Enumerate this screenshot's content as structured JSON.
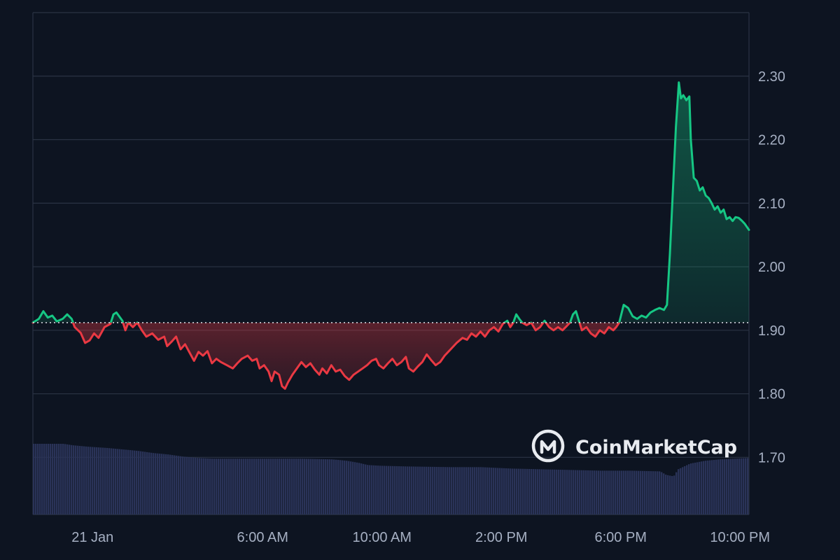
{
  "chart_data": {
    "type": "area",
    "brand": "CoinMarketCap",
    "logo_icon": "coinmarketcap-logo",
    "colors": {
      "background": "#0d1421",
      "grid": "#2b3344",
      "up": "#16c784",
      "down": "#ea3943",
      "volume": "#2a3358",
      "text": "#a6b0c3"
    },
    "baseline": 1.912,
    "ylim": [
      1.61,
      2.4
    ],
    "y_ticks": [
      {
        "value": 2.3,
        "label": "2.30"
      },
      {
        "value": 2.2,
        "label": "2.20"
      },
      {
        "value": 2.1,
        "label": "2.10"
      },
      {
        "value": 2.0,
        "label": "2.00"
      },
      {
        "value": 1.9,
        "label": "1.90"
      },
      {
        "value": 1.8,
        "label": "1.80"
      },
      {
        "value": 1.7,
        "label": "1.70"
      }
    ],
    "x_range_hours": [
      0,
      24
    ],
    "x_ticks": [
      {
        "hour": 2.0,
        "label": "21 Jan"
      },
      {
        "hour": 7.7,
        "label": "6:00 AM"
      },
      {
        "hour": 11.7,
        "label": "10:00 AM"
      },
      {
        "hour": 15.7,
        "label": "2:00 PM"
      },
      {
        "hour": 19.7,
        "label": "6:00 PM"
      },
      {
        "hour": 23.7,
        "label": "10:00 PM"
      }
    ],
    "price_series": [
      [
        0.0,
        1.912
      ],
      [
        0.2,
        1.918
      ],
      [
        0.35,
        1.93
      ],
      [
        0.5,
        1.92
      ],
      [
        0.65,
        1.923
      ],
      [
        0.8,
        1.914
      ],
      [
        1.0,
        1.918
      ],
      [
        1.15,
        1.925
      ],
      [
        1.3,
        1.918
      ],
      [
        1.4,
        1.905
      ],
      [
        1.6,
        1.896
      ],
      [
        1.75,
        1.88
      ],
      [
        1.9,
        1.884
      ],
      [
        2.05,
        1.895
      ],
      [
        2.2,
        1.888
      ],
      [
        2.4,
        1.905
      ],
      [
        2.6,
        1.91
      ],
      [
        2.7,
        1.925
      ],
      [
        2.8,
        1.928
      ],
      [
        3.0,
        1.915
      ],
      [
        3.1,
        1.9
      ],
      [
        3.2,
        1.912
      ],
      [
        3.35,
        1.905
      ],
      [
        3.5,
        1.912
      ],
      [
        3.65,
        1.9
      ],
      [
        3.8,
        1.89
      ],
      [
        4.0,
        1.895
      ],
      [
        4.2,
        1.885
      ],
      [
        4.4,
        1.89
      ],
      [
        4.5,
        1.875
      ],
      [
        4.65,
        1.882
      ],
      [
        4.8,
        1.89
      ],
      [
        4.95,
        1.87
      ],
      [
        5.1,
        1.878
      ],
      [
        5.25,
        1.865
      ],
      [
        5.4,
        1.852
      ],
      [
        5.55,
        1.866
      ],
      [
        5.7,
        1.86
      ],
      [
        5.85,
        1.867
      ],
      [
        6.0,
        1.848
      ],
      [
        6.15,
        1.855
      ],
      [
        6.3,
        1.85
      ],
      [
        6.5,
        1.845
      ],
      [
        6.7,
        1.84
      ],
      [
        6.85,
        1.848
      ],
      [
        7.0,
        1.855
      ],
      [
        7.2,
        1.86
      ],
      [
        7.35,
        1.852
      ],
      [
        7.5,
        1.855
      ],
      [
        7.6,
        1.84
      ],
      [
        7.75,
        1.845
      ],
      [
        7.9,
        1.835
      ],
      [
        8.0,
        1.82
      ],
      [
        8.1,
        1.835
      ],
      [
        8.25,
        1.83
      ],
      [
        8.35,
        1.812
      ],
      [
        8.45,
        1.808
      ],
      [
        8.55,
        1.818
      ],
      [
        8.7,
        1.83
      ],
      [
        8.85,
        1.84
      ],
      [
        9.0,
        1.85
      ],
      [
        9.15,
        1.842
      ],
      [
        9.3,
        1.848
      ],
      [
        9.45,
        1.838
      ],
      [
        9.6,
        1.83
      ],
      [
        9.7,
        1.84
      ],
      [
        9.85,
        1.832
      ],
      [
        10.0,
        1.845
      ],
      [
        10.15,
        1.835
      ],
      [
        10.3,
        1.838
      ],
      [
        10.45,
        1.828
      ],
      [
        10.6,
        1.822
      ],
      [
        10.75,
        1.83
      ],
      [
        10.9,
        1.835
      ],
      [
        11.05,
        1.84
      ],
      [
        11.2,
        1.845
      ],
      [
        11.35,
        1.852
      ],
      [
        11.5,
        1.855
      ],
      [
        11.6,
        1.845
      ],
      [
        11.75,
        1.84
      ],
      [
        11.9,
        1.848
      ],
      [
        12.05,
        1.855
      ],
      [
        12.2,
        1.845
      ],
      [
        12.35,
        1.85
      ],
      [
        12.5,
        1.858
      ],
      [
        12.6,
        1.84
      ],
      [
        12.75,
        1.835
      ],
      [
        12.9,
        1.843
      ],
      [
        13.05,
        1.85
      ],
      [
        13.2,
        1.862
      ],
      [
        13.35,
        1.853
      ],
      [
        13.5,
        1.845
      ],
      [
        13.65,
        1.85
      ],
      [
        13.8,
        1.86
      ],
      [
        14.0,
        1.87
      ],
      [
        14.2,
        1.88
      ],
      [
        14.4,
        1.888
      ],
      [
        14.55,
        1.885
      ],
      [
        14.7,
        1.895
      ],
      [
        14.85,
        1.89
      ],
      [
        15.0,
        1.898
      ],
      [
        15.15,
        1.89
      ],
      [
        15.3,
        1.9
      ],
      [
        15.45,
        1.905
      ],
      [
        15.6,
        1.898
      ],
      [
        15.75,
        1.91
      ],
      [
        15.9,
        1.915
      ],
      [
        16.0,
        1.905
      ],
      [
        16.1,
        1.912
      ],
      [
        16.2,
        1.925
      ],
      [
        16.3,
        1.918
      ],
      [
        16.4,
        1.912
      ],
      [
        16.55,
        1.908
      ],
      [
        16.7,
        1.912
      ],
      [
        16.85,
        1.9
      ],
      [
        17.0,
        1.905
      ],
      [
        17.15,
        1.915
      ],
      [
        17.3,
        1.905
      ],
      [
        17.45,
        1.9
      ],
      [
        17.6,
        1.905
      ],
      [
        17.75,
        1.9
      ],
      [
        17.9,
        1.907
      ],
      [
        18.0,
        1.912
      ],
      [
        18.1,
        1.925
      ],
      [
        18.2,
        1.93
      ],
      [
        18.3,
        1.915
      ],
      [
        18.4,
        1.9
      ],
      [
        18.55,
        1.905
      ],
      [
        18.7,
        1.895
      ],
      [
        18.85,
        1.89
      ],
      [
        19.0,
        1.9
      ],
      [
        19.15,
        1.895
      ],
      [
        19.3,
        1.905
      ],
      [
        19.45,
        1.9
      ],
      [
        19.55,
        1.905
      ],
      [
        19.65,
        1.912
      ],
      [
        19.8,
        1.94
      ],
      [
        19.95,
        1.935
      ],
      [
        20.1,
        1.922
      ],
      [
        20.25,
        1.918
      ],
      [
        20.4,
        1.923
      ],
      [
        20.55,
        1.92
      ],
      [
        20.7,
        1.928
      ],
      [
        20.85,
        1.932
      ],
      [
        21.0,
        1.935
      ],
      [
        21.15,
        1.932
      ],
      [
        21.25,
        1.94
      ],
      [
        21.35,
        2.02
      ],
      [
        21.45,
        2.12
      ],
      [
        21.55,
        2.22
      ],
      [
        21.65,
        2.29
      ],
      [
        21.72,
        2.265
      ],
      [
        21.8,
        2.27
      ],
      [
        21.9,
        2.262
      ],
      [
        22.0,
        2.268
      ],
      [
        22.05,
        2.2
      ],
      [
        22.15,
        2.14
      ],
      [
        22.25,
        2.135
      ],
      [
        22.35,
        2.12
      ],
      [
        22.45,
        2.125
      ],
      [
        22.55,
        2.112
      ],
      [
        22.65,
        2.108
      ],
      [
        22.75,
        2.1
      ],
      [
        22.85,
        2.09
      ],
      [
        22.95,
        2.095
      ],
      [
        23.05,
        2.085
      ],
      [
        23.15,
        2.09
      ],
      [
        23.25,
        2.075
      ],
      [
        23.35,
        2.078
      ],
      [
        23.45,
        2.072
      ],
      [
        23.55,
        2.078
      ],
      [
        23.65,
        2.077
      ],
      [
        23.75,
        2.073
      ],
      [
        23.85,
        2.068
      ],
      [
        24.0,
        2.058
      ]
    ],
    "volume_series": [
      [
        0.0,
        1.0
      ],
      [
        1.0,
        1.0
      ],
      [
        1.3,
        0.98
      ],
      [
        1.8,
        0.96
      ],
      [
        2.5,
        0.94
      ],
      [
        3.0,
        0.92
      ],
      [
        3.5,
        0.9
      ],
      [
        4.0,
        0.87
      ],
      [
        4.5,
        0.85
      ],
      [
        5.0,
        0.82
      ],
      [
        5.5,
        0.8
      ],
      [
        6.0,
        0.79
      ],
      [
        7.0,
        0.79
      ],
      [
        8.0,
        0.79
      ],
      [
        9.0,
        0.79
      ],
      [
        10.0,
        0.78
      ],
      [
        10.5,
        0.76
      ],
      [
        10.9,
        0.73
      ],
      [
        11.2,
        0.7
      ],
      [
        11.6,
        0.69
      ],
      [
        12.5,
        0.68
      ],
      [
        14.0,
        0.67
      ],
      [
        15.0,
        0.67
      ],
      [
        16.0,
        0.65
      ],
      [
        17.0,
        0.64
      ],
      [
        18.0,
        0.63
      ],
      [
        19.0,
        0.62
      ],
      [
        20.0,
        0.62
      ],
      [
        21.0,
        0.61
      ],
      [
        21.2,
        0.56
      ],
      [
        21.45,
        0.54
      ],
      [
        21.6,
        0.64
      ],
      [
        22.0,
        0.72
      ],
      [
        22.5,
        0.76
      ],
      [
        23.0,
        0.78
      ],
      [
        24.0,
        0.8
      ]
    ]
  }
}
